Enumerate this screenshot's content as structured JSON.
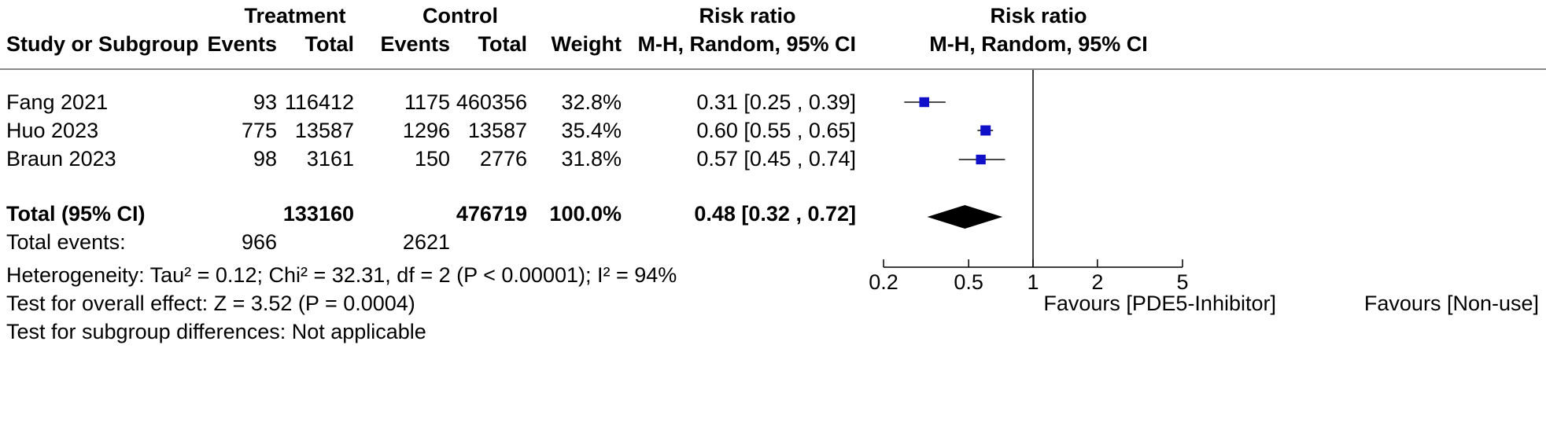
{
  "headers": {
    "treatment_group": "Treatment",
    "control_group": "Control",
    "risk_ratio_group": "Risk ratio",
    "plot_group": "Risk ratio",
    "study": "Study or Subgroup",
    "events_t": "Events",
    "total_t": "Total",
    "events_c": "Events",
    "total_c": "Total",
    "weight": "Weight",
    "method": "M-H, Random, 95% CI",
    "plot_method": "M-H, Random, 95% CI"
  },
  "studies": [
    {
      "name": "Fang 2021",
      "events_t": "93",
      "total_t": "116412",
      "events_c": "1175",
      "total_c": "460356",
      "weight": "32.8%",
      "ci_text": "0.31 [0.25 , 0.39]"
    },
    {
      "name": "Huo 2023",
      "events_t": "775",
      "total_t": "13587",
      "events_c": "1296",
      "total_c": "13587",
      "weight": "35.4%",
      "ci_text": "0.60 [0.55 , 0.65]"
    },
    {
      "name": "Braun 2023",
      "events_t": "98",
      "total_t": "3161",
      "events_c": "150",
      "total_c": "2776",
      "weight": "31.8%",
      "ci_text": "0.57 [0.45 , 0.74]"
    }
  ],
  "total_row": {
    "label": "Total (95% CI)",
    "total_t": "133160",
    "total_c": "476719",
    "weight": "100.0%",
    "ci_text": "0.48 [0.32 , 0.72]"
  },
  "total_events": {
    "label": "Total events:",
    "events_t": "966",
    "events_c": "2621"
  },
  "footer": {
    "heterogeneity": "Heterogeneity: Tau² = 0.12; Chi² = 32.31, df = 2 (P < 0.00001); I² = 94%",
    "overall": "Test for overall effect: Z = 3.52 (P = 0.0004)",
    "subgroup": "Test for subgroup differences: Not applicable"
  },
  "axis": {
    "favours_left": "Favours [PDE5-Inhibitor]",
    "favours_right": "Favours [Non-use]"
  },
  "chart_data": {
    "type": "scatter",
    "scale": "log",
    "xlim": [
      0.2,
      5
    ],
    "ticks": [
      0.2,
      0.5,
      1,
      2,
      5
    ],
    "tick_labels": [
      "0.2",
      "0.5",
      "1",
      "2",
      "5"
    ],
    "reference_line": 1,
    "marker_color": "#1010c8",
    "studies": [
      {
        "name": "Fang 2021",
        "rr": 0.31,
        "lower": 0.25,
        "upper": 0.39,
        "weight": 32.8
      },
      {
        "name": "Huo 2023",
        "rr": 0.6,
        "lower": 0.55,
        "upper": 0.65,
        "weight": 35.4
      },
      {
        "name": "Braun 2023",
        "rr": 0.57,
        "lower": 0.45,
        "upper": 0.74,
        "weight": 31.8
      }
    ],
    "pooled": {
      "rr": 0.48,
      "lower": 0.32,
      "upper": 0.72
    }
  }
}
